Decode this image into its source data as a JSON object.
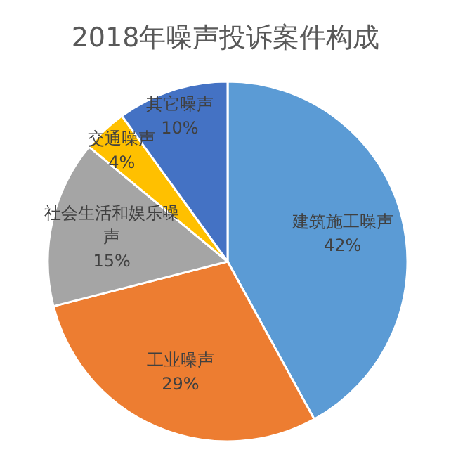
{
  "chart_data": {
    "type": "pie",
    "title": "2018年噪声投诉案件构成",
    "categories": [
      "建筑施工噪声",
      "工业噪声",
      "社会生活和娱乐噪声",
      "交通噪声",
      "其它噪声"
    ],
    "values": [
      42,
      29,
      15,
      4,
      10
    ],
    "value_labels": [
      "42%",
      "29%",
      "15%",
      "4%",
      "10%"
    ],
    "colors": [
      "#5b9bd5",
      "#ed7d31",
      "#a5a5a5",
      "#ffc000",
      "#4472c4"
    ],
    "legend": false
  }
}
